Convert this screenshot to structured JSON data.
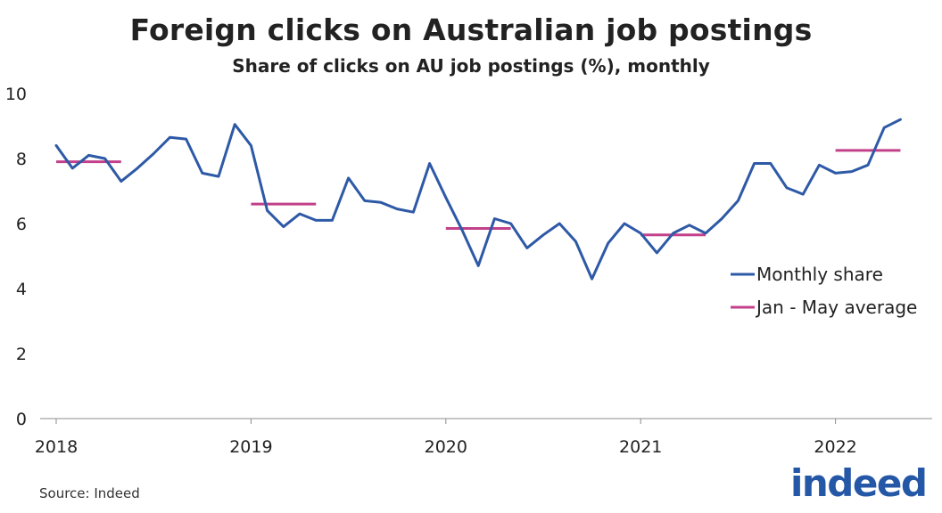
{
  "title": "Foreign clicks on Australian job postings",
  "subtitle": "Share of clicks on AU job postings (%), monthly",
  "source": "Source: Indeed",
  "logo_text": "indeed",
  "colors": {
    "monthly": "#2e59a6",
    "average": "#c2408a",
    "text": "#222222",
    "axis": "#8c8c8c",
    "logo": "#2557a7"
  },
  "chart_data": {
    "type": "line",
    "x_ticks": [
      "2018",
      "2019",
      "2020",
      "2021",
      "2022"
    ],
    "y_ticks": [
      "0",
      "2",
      "4",
      "6",
      "8",
      "10"
    ],
    "ylim": [
      0,
      10
    ],
    "grid": false,
    "legend_position": "right",
    "monthly_share": {
      "name": "Monthly share",
      "x": [
        "2018-01",
        "2018-02",
        "2018-03",
        "2018-04",
        "2018-05",
        "2018-06",
        "2018-07",
        "2018-08",
        "2018-09",
        "2018-10",
        "2018-11",
        "2018-12",
        "2019-01",
        "2019-02",
        "2019-03",
        "2019-04",
        "2019-05",
        "2019-06",
        "2019-07",
        "2019-08",
        "2019-09",
        "2019-10",
        "2019-11",
        "2019-12",
        "2020-01",
        "2020-02",
        "2020-03",
        "2020-04",
        "2020-05",
        "2020-06",
        "2020-07",
        "2020-08",
        "2020-09",
        "2020-10",
        "2020-11",
        "2020-12",
        "2021-01",
        "2021-02",
        "2021-03",
        "2021-04",
        "2021-05",
        "2021-06",
        "2021-07",
        "2021-08",
        "2021-09",
        "2021-10",
        "2021-11",
        "2021-12",
        "2022-01",
        "2022-02",
        "2022-03",
        "2022-04",
        "2022-05"
      ],
      "values": [
        8.4,
        7.7,
        8.1,
        8.0,
        7.3,
        7.7,
        8.15,
        8.65,
        8.6,
        7.55,
        7.45,
        9.05,
        8.4,
        6.4,
        5.9,
        6.3,
        6.1,
        6.1,
        7.4,
        6.7,
        6.65,
        6.45,
        6.35,
        7.85,
        6.8,
        5.8,
        4.7,
        6.15,
        6.0,
        5.25,
        5.65,
        6.0,
        5.45,
        4.3,
        5.4,
        6.0,
        5.7,
        5.1,
        5.7,
        5.95,
        5.7,
        6.15,
        6.7,
        7.85,
        7.85,
        7.1,
        6.9,
        7.8,
        7.55,
        7.6,
        7.8,
        8.95,
        9.2
      ]
    },
    "jan_may_average": {
      "name": "Jan - May average",
      "segments": [
        {
          "start": "2018-01",
          "end": "2018-05",
          "value": 7.9
        },
        {
          "start": "2019-01",
          "end": "2019-05",
          "value": 6.6
        },
        {
          "start": "2020-01",
          "end": "2020-05",
          "value": 5.85
        },
        {
          "start": "2021-01",
          "end": "2021-05",
          "value": 5.65
        },
        {
          "start": "2022-01",
          "end": "2022-05",
          "value": 8.25
        }
      ]
    }
  }
}
